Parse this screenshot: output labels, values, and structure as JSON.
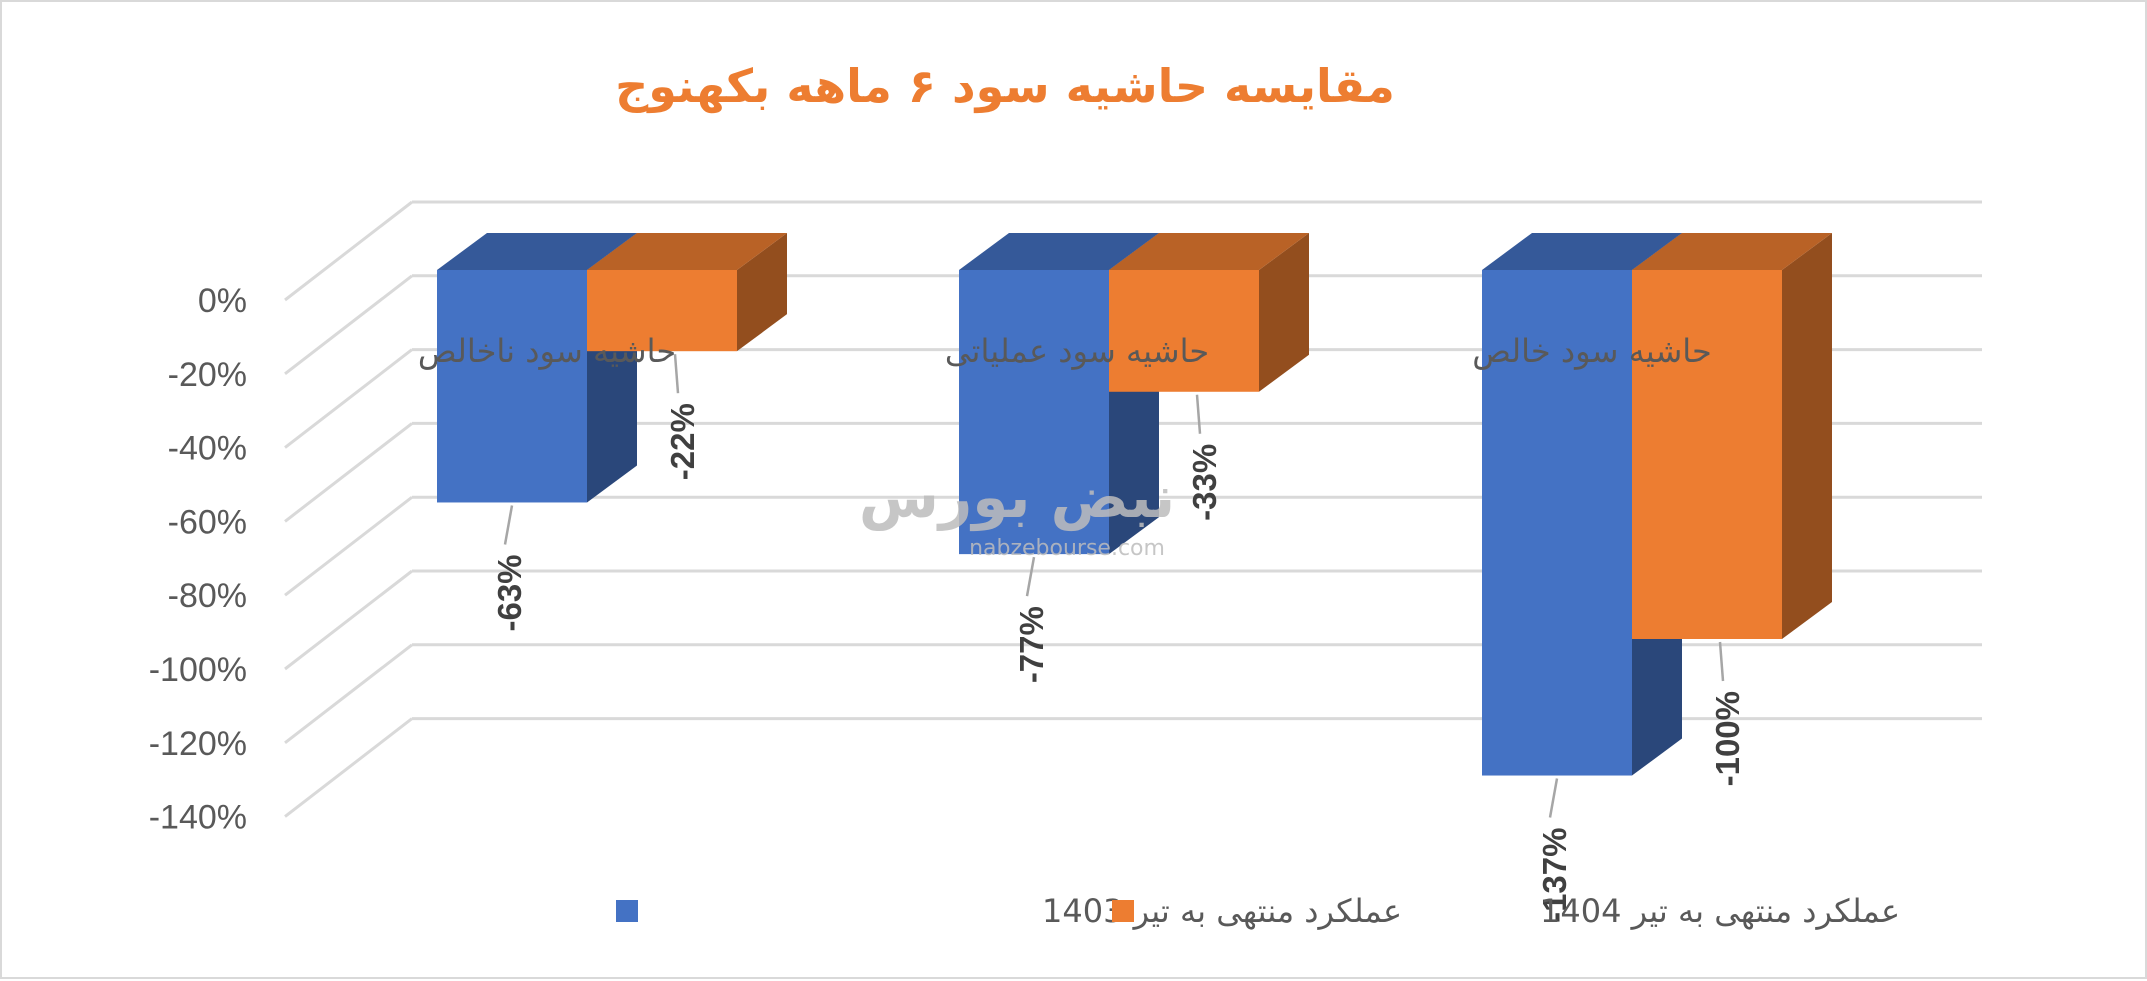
{
  "chart_data": {
    "type": "bar",
    "title": "مقایسه حاشیه سود ۶ ماهه بکهنوج",
    "categories": [
      "حاشیه سود ناخالص",
      "حاشیه سود عملیاتی",
      "حاشیه سود خالص"
    ],
    "series": [
      {
        "name": "عملکرد منتهی به تیر 1403",
        "values": [
          -63,
          -77,
          -137
        ],
        "labels": [
          "-63%",
          "-77%",
          "-137%"
        ],
        "color": "#4472c4"
      },
      {
        "name": "عملکرد منتهی به تیر 1404",
        "values": [
          -22,
          -33,
          -100
        ],
        "labels": [
          "-22%",
          "-33%",
          "-100%"
        ],
        "color": "#ed7d31"
      }
    ],
    "yticks": [
      "0%",
      "-20%",
      "-40%",
      "-60%",
      "-80%",
      "-100%",
      "-120%",
      "-140%"
    ],
    "ytick_values": [
      0,
      -20,
      -40,
      -60,
      -80,
      -100,
      -120,
      -140
    ],
    "ylim": [
      -140,
      0
    ],
    "grid": true,
    "legend": "bottom",
    "title_color": "#ed7d31"
  },
  "watermark": {
    "brand": "نبض بورس",
    "url": "nabzebourse.com"
  }
}
